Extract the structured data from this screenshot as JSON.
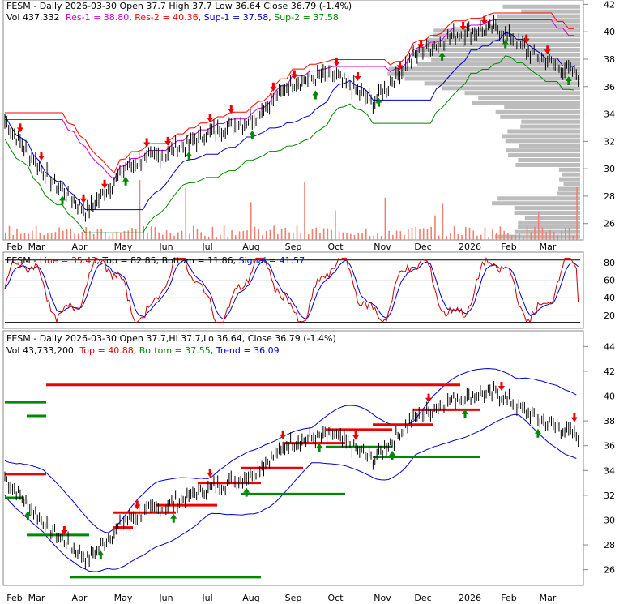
{
  "colors": {
    "price": "#000000",
    "res1": "#cc00cc",
    "res2": "#ff0000",
    "sup1": "#0000cc",
    "sup2": "#008800",
    "volume": "#f08070",
    "volume_profile": "#b0b0b0",
    "up_arrow": "#008800",
    "down_arrow": "#ee0000",
    "stoch_line": "#cc0000",
    "stoch_signal": "#0000cc",
    "stoch_band": "#000000",
    "bb_band": "#0000cc",
    "top_line": "#ee0000",
    "bottom_line": "#008800",
    "grid": "#dddddd"
  },
  "panel1": {
    "legend": [
      {
        "text": "FESM - Daily 2026-03-30 Open 37.7  High 37.7  Low 36.64  Close 36.79 (-1.4%)",
        "color": "#000000"
      },
      {
        "text": "Vol 437,332",
        "color": "#000000"
      },
      {
        "text": "Res-1 = 38.80",
        "color": "#cc00cc"
      },
      {
        "text": "Res-2 = 40.36",
        "color": "#ff0000"
      },
      {
        "text": "Sup-1 = 37.58",
        "color": "#0000cc"
      },
      {
        "text": "Sup-2 = 37.58",
        "color": "#008800"
      }
    ]
  },
  "panel2": {
    "legend": [
      {
        "text": "FESM - ",
        "color": "#000000"
      },
      {
        "text": "Line = 35.43",
        "color": "#cc0000"
      },
      {
        "text": ", Top = 82.85, Bottom = 11.86, ",
        "color": "#000000"
      },
      {
        "text": "Signal = 41.57",
        "color": "#0000cc"
      }
    ]
  },
  "panel3": {
    "legend": [
      {
        "text": "FESM - Daily 2026-03-30 Open 37.7,Hi 37.7,Lo 36.64, Close 36.79 (-1.4%)",
        "color": "#000000"
      },
      {
        "text": "Vol 43,733,200",
        "color": "#000000"
      },
      {
        "text": "Top = 40.88",
        "color": "#ee0000"
      },
      {
        "text": "Bottom = 37.55",
        "color": "#008800"
      },
      {
        "text": "Trend = 36.09",
        "color": "#0000cc"
      }
    ]
  },
  "chart_data": [
    {
      "type": "line",
      "subtype": "ohlc-with-volume-and-support-resistance",
      "ticker": "FESM",
      "x_tick_labels": [
        "Feb",
        "Mar",
        "Apr",
        "May",
        "Jun",
        "Jul",
        "Aug",
        "Sep",
        "Oct",
        "Nov",
        "Dec",
        "2026",
        "Feb",
        "Mar"
      ],
      "y_ticks": [
        26,
        28,
        30,
        32,
        34,
        36,
        38,
        40,
        42
      ],
      "ylim": [
        24.8,
        42.2
      ],
      "close_monthly": {
        "x": [
          "Feb",
          "Mar",
          "Apr",
          "May",
          "Jun",
          "Jul",
          "Aug",
          "Sep",
          "Oct",
          "Nov",
          "Dec",
          "2026",
          "Feb",
          "Mar",
          "Mar-30"
        ],
        "values": [
          33.4,
          29.6,
          26.8,
          30.2,
          31.2,
          32.6,
          33.6,
          36.3,
          36.9,
          34.9,
          38.2,
          39.8,
          40.3,
          38.2,
          36.79
        ]
      },
      "series": [
        {
          "name": "Res-1",
          "last": 38.8
        },
        {
          "name": "Res-2",
          "last": 40.36
        },
        {
          "name": "Sup-1",
          "last": 37.58
        },
        {
          "name": "Sup-2",
          "last": 37.58
        }
      ],
      "grid": false
    },
    {
      "type": "line",
      "subtype": "stochastic",
      "y_ticks": [
        20,
        40,
        60,
        80
      ],
      "ylim": [
        5,
        90
      ],
      "series": [
        {
          "name": "Line",
          "last": 35.43
        },
        {
          "name": "Signal",
          "last": 41.57
        }
      ],
      "top": 82.85,
      "bottom": 11.86
    },
    {
      "type": "line",
      "subtype": "ohlc-with-bands-and-top-bottom-levels",
      "x_tick_labels": [
        "Feb",
        "Mar",
        "Apr",
        "May",
        "Jun",
        "Jul",
        "Aug",
        "Sep",
        "Oct",
        "Nov",
        "Dec",
        "2026",
        "Feb",
        "Mar"
      ],
      "y_ticks": [
        26,
        28,
        30,
        32,
        34,
        36,
        38,
        40,
        42,
        44
      ],
      "ylim": [
        24.8,
        45.2
      ],
      "top_levels": [
        {
          "from": "Feb",
          "to": "Mar",
          "value": 33.7
        },
        {
          "from": "May",
          "to": "May",
          "value": 29.4
        },
        {
          "from": "May",
          "to": "Jun",
          "value": 30.6
        },
        {
          "from": "Jun",
          "to": "Jul",
          "value": 31.2
        },
        {
          "from": "Jul",
          "to": "Aug",
          "value": 33.0
        },
        {
          "from": "Aug",
          "to": "Sep",
          "value": 34.2
        },
        {
          "from": "Sep",
          "to": "Oct",
          "value": 36.2
        },
        {
          "from": "Oct",
          "to": "Nov",
          "value": 37.3
        },
        {
          "from": "Nov",
          "to": "Dec",
          "value": 37.7
        },
        {
          "from": "Dec",
          "to": "2026",
          "value": 38.9
        },
        {
          "from": "2026",
          "to": "Mar",
          "value": 40.9
        }
      ],
      "bottom_levels": [
        {
          "from": "Feb",
          "to": "Feb",
          "value": 31.8
        },
        {
          "from": "Mar",
          "to": "Apr",
          "value": 28.8
        },
        {
          "from": "Apr",
          "to": "Aug",
          "value": 25.4
        },
        {
          "from": "Aug",
          "to": "Oct",
          "value": 32.1
        },
        {
          "from": "Oct",
          "to": "Nov",
          "value": 35.9
        },
        {
          "from": "Nov",
          "to": "2026",
          "value": 35.1
        },
        {
          "from": "Feb",
          "to": "Mar",
          "value": 39.5
        },
        {
          "from": "Mar",
          "to": "Mar",
          "value": 38.4
        }
      ]
    }
  ]
}
